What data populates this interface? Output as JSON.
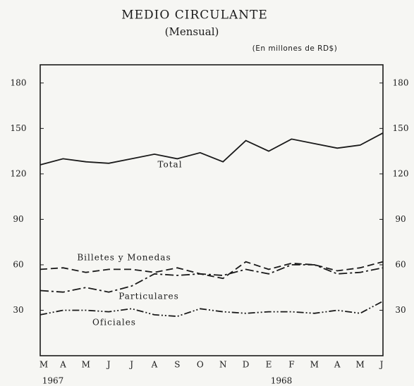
{
  "chart_data": {
    "type": "line",
    "title": "MEDIO CIRCULANTE",
    "subtitle": "(Mensual)",
    "unit_note": "(En millones de RD$)",
    "categories": [
      "M",
      "A",
      "M",
      "J",
      "J",
      "A",
      "S",
      "O",
      "N",
      "D",
      "E",
      "F",
      "M",
      "A",
      "M",
      "J"
    ],
    "years": [
      "1967",
      "1968"
    ],
    "ylim": [
      0,
      192
    ],
    "yticks": [
      30,
      60,
      90,
      120,
      150,
      180
    ],
    "y2lim": [
      0,
      192
    ],
    "y2ticks": [
      30,
      60,
      90,
      120,
      150,
      180
    ],
    "grid": false,
    "series": [
      {
        "name": "Total",
        "color": "#1a1a1a",
        "dash": "solid",
        "values": [
          126,
          130,
          128,
          127,
          130,
          133,
          130,
          134,
          128,
          142,
          135,
          143,
          140,
          137,
          139,
          147
        ]
      },
      {
        "name": "Billetes y Monedas",
        "color": "#1a1a1a",
        "dash": "dashed",
        "values": [
          57,
          58,
          55,
          57,
          57,
          55,
          58,
          54,
          51,
          62,
          57,
          61,
          60,
          56,
          58,
          62
        ]
      },
      {
        "name": "Particulares",
        "color": "#1a1a1a",
        "dash": "dashdot",
        "values": [
          43,
          42,
          45,
          42,
          46,
          54,
          53,
          54,
          53,
          57,
          54,
          60,
          60,
          54,
          55,
          58
        ]
      },
      {
        "name": "Oficiales",
        "color": "#1a1a1a",
        "dash": "dashdotdot",
        "values": [
          27,
          30,
          30,
          29,
          31,
          27,
          26,
          31,
          29,
          28,
          29,
          29,
          28,
          30,
          28,
          36
        ]
      }
    ]
  }
}
